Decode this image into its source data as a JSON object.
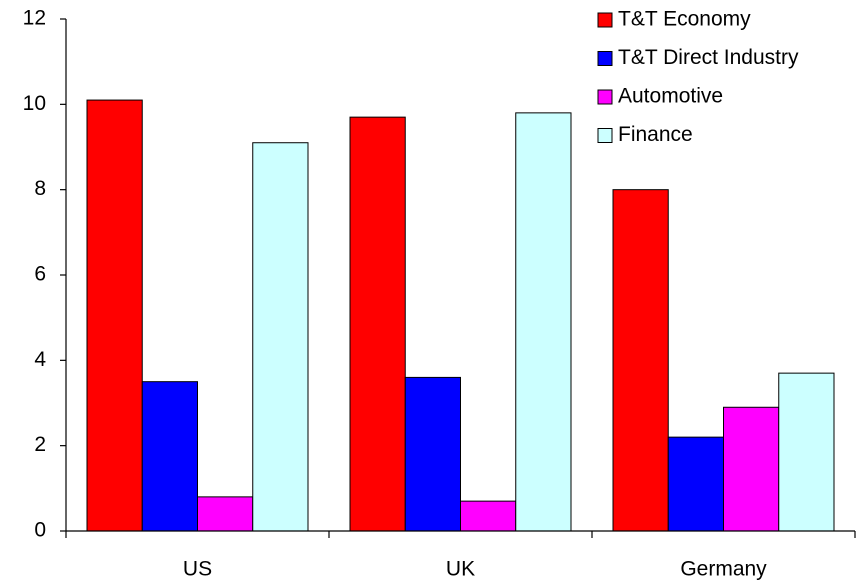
{
  "chart_data": {
    "type": "bar",
    "categories": [
      "US",
      "UK",
      "Germany"
    ],
    "series": [
      {
        "name": "T&T Economy",
        "color": "#ff0000",
        "values": [
          10.1,
          9.7,
          8.0
        ]
      },
      {
        "name": "T&T Direct Industry",
        "color": "#0000ff",
        "values": [
          3.5,
          3.6,
          2.2
        ]
      },
      {
        "name": "Automotive",
        "color": "#ff00ff",
        "values": [
          0.8,
          0.7,
          2.9
        ]
      },
      {
        "name": "Finance",
        "color": "#ccffff",
        "values": [
          9.1,
          9.8,
          3.7
        ]
      }
    ],
    "ylim": [
      0,
      12
    ],
    "yticks": [
      0,
      2,
      4,
      6,
      8,
      10,
      12
    ],
    "grid": false,
    "legend": "top-right"
  }
}
